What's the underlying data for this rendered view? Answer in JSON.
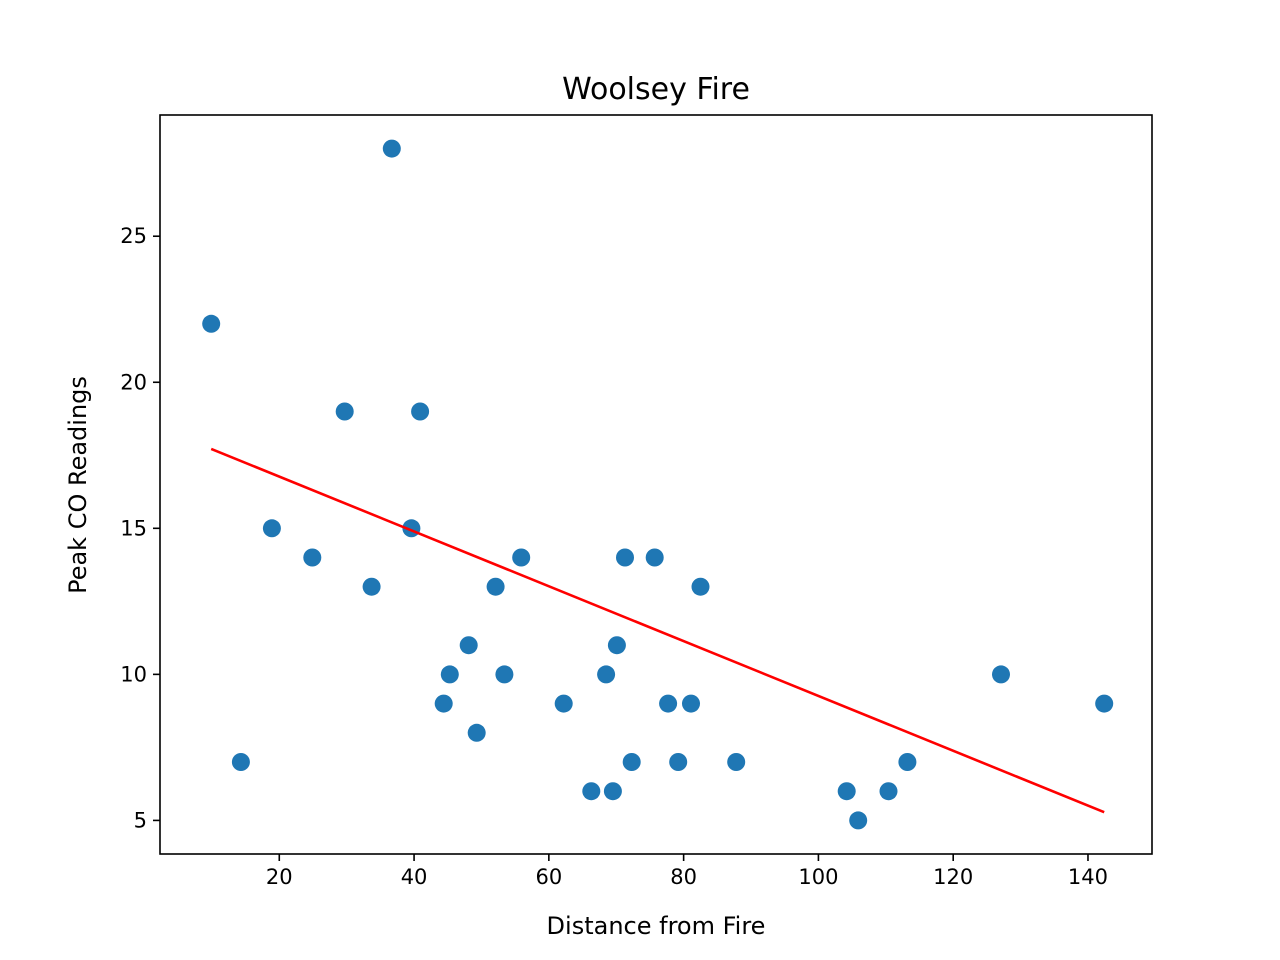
{
  "chart_data": {
    "type": "scatter",
    "title": "Woolsey Fire",
    "xlabel": "Distance from Fire",
    "ylabel": "Peak CO Readings",
    "xlim": [
      2.3,
      149.5
    ],
    "ylim": [
      3.85,
      29.15
    ],
    "xticks": [
      20,
      40,
      60,
      80,
      100,
      120,
      140
    ],
    "yticks": [
      5,
      10,
      15,
      20,
      25
    ],
    "grid": false,
    "series": [
      {
        "kind": "points",
        "color": "#1f77b4",
        "points": [
          [
            9.9,
            22
          ],
          [
            14.3,
            7
          ],
          [
            18.9,
            15
          ],
          [
            24.9,
            14
          ],
          [
            29.7,
            19
          ],
          [
            33.7,
            13
          ],
          [
            36.7,
            28
          ],
          [
            39.6,
            15
          ],
          [
            40.9,
            19
          ],
          [
            44.4,
            9
          ],
          [
            45.3,
            10
          ],
          [
            48.1,
            11
          ],
          [
            49.3,
            8
          ],
          [
            52.1,
            13
          ],
          [
            53.4,
            10
          ],
          [
            55.9,
            14
          ],
          [
            62.2,
            9
          ],
          [
            66.3,
            6
          ],
          [
            68.5,
            10
          ],
          [
            69.5,
            6
          ],
          [
            70.1,
            11
          ],
          [
            71.3,
            14
          ],
          [
            72.3,
            7
          ],
          [
            75.7,
            14
          ],
          [
            77.7,
            9
          ],
          [
            79.2,
            7
          ],
          [
            81.1,
            9
          ],
          [
            82.5,
            13
          ],
          [
            87.8,
            7
          ],
          [
            104.2,
            6
          ],
          [
            105.9,
            5
          ],
          [
            110.4,
            6
          ],
          [
            113.2,
            7
          ],
          [
            127.1,
            10
          ],
          [
            142.4,
            9
          ]
        ]
      },
      {
        "kind": "trend-line",
        "color": "#ff0000",
        "points": [
          [
            9.9,
            17.72
          ],
          [
            142.4,
            5.28
          ]
        ]
      }
    ]
  }
}
